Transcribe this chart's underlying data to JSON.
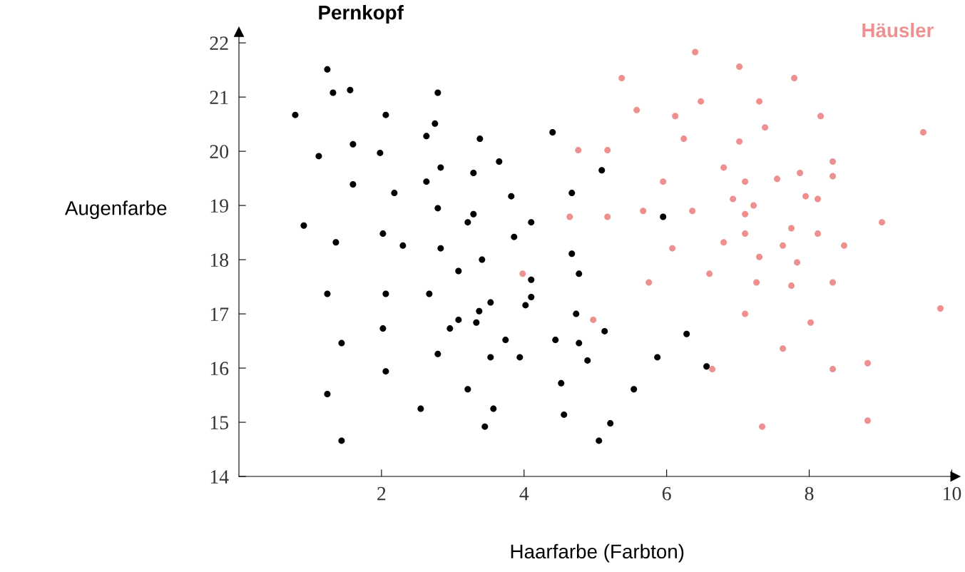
{
  "chart_data": {
    "type": "scatter",
    "xlabel": "Haarfarbe (Farbton)",
    "ylabel": "Augenfarbe",
    "xlim": [
      0,
      10.05
    ],
    "ylim": [
      14,
      22.2
    ],
    "xticks": [
      2,
      4,
      6,
      8,
      10
    ],
    "yticks": [
      14,
      15,
      16,
      17,
      18,
      19,
      20,
      21,
      22
    ],
    "grid": false,
    "legend": false,
    "marker": "circle",
    "series": [
      {
        "name": "Pernkopf",
        "color": "#000000",
        "x": [
          0.79,
          1.24,
          1.32,
          1.56,
          1.12,
          0.91,
          1.6,
          1.6,
          1.36,
          1.24,
          1.44,
          1.24,
          1.44,
          2.06,
          1.98,
          2.18,
          2.02,
          2.3,
          2.06,
          2.02,
          2.06,
          2.79,
          2.75,
          2.63,
          2.83,
          2.63,
          2.79,
          2.83,
          2.67,
          2.79,
          2.55,
          3.38,
          3.29,
          3.65,
          3.29,
          3.21,
          3.82,
          3.86,
          3.41,
          3.08,
          3.37,
          3.08,
          2.96,
          3.33,
          3.53,
          3.74,
          3.53,
          3.94,
          3.21,
          3.57,
          3.45,
          4.1,
          4.1,
          4.1,
          4.02,
          4.4,
          4.67,
          4.67,
          4.77,
          4.73,
          4.77,
          4.44,
          4.52,
          4.56,
          5.09,
          5.13,
          4.89,
          5.21,
          5.05,
          5.54,
          5.87,
          5.95,
          6.28,
          6.56
        ],
        "values": [
          20.67,
          21.51,
          21.08,
          21.13,
          19.91,
          18.63,
          20.13,
          19.39,
          18.32,
          17.37,
          16.46,
          15.52,
          14.66,
          20.67,
          19.97,
          19.23,
          18.48,
          18.26,
          17.37,
          16.73,
          15.94,
          21.08,
          20.51,
          20.28,
          19.7,
          19.44,
          18.95,
          18.21,
          17.37,
          16.26,
          15.25,
          20.23,
          19.6,
          19.81,
          18.84,
          18.69,
          19.17,
          18.42,
          18.0,
          17.79,
          17.05,
          16.89,
          16.73,
          16.84,
          17.21,
          16.52,
          16.2,
          16.2,
          15.61,
          15.25,
          14.92,
          18.69,
          17.63,
          17.31,
          17.16,
          20.35,
          18.11,
          19.23,
          17.74,
          17.0,
          16.46,
          16.52,
          15.72,
          15.14,
          19.65,
          16.68,
          16.14,
          14.98,
          14.66,
          15.61,
          16.2,
          18.79,
          16.63,
          16.03
        ]
      },
      {
        "name": "Häusler",
        "color": "#ee9090",
        "x": [
          5.37,
          6.4,
          7.02,
          7.79,
          5.58,
          6.48,
          6.12,
          7.3,
          7.38,
          8.16,
          9.6,
          6.24,
          7.02,
          4.76,
          5.17,
          6.8,
          8.33,
          7.87,
          8.33,
          5.95,
          7.1,
          7.55,
          6.93,
          7.95,
          8.12,
          7.22,
          5.67,
          6.36,
          7.1,
          4.64,
          5.17,
          9.02,
          7.75,
          7.1,
          8.12,
          6.8,
          6.08,
          7.63,
          8.49,
          7.3,
          7.83,
          3.98,
          6.6,
          5.75,
          7.26,
          7.75,
          8.33,
          7.1,
          9.84,
          4.97,
          8.02,
          7.63,
          6.64,
          8.33,
          8.82,
          7.34,
          8.82
        ],
        "values": [
          21.35,
          21.83,
          21.56,
          21.35,
          20.76,
          20.92,
          20.65,
          20.92,
          20.44,
          20.65,
          20.35,
          20.23,
          20.18,
          20.02,
          20.02,
          19.7,
          19.81,
          19.6,
          19.54,
          19.44,
          19.44,
          19.49,
          19.12,
          19.17,
          19.12,
          19.0,
          18.9,
          18.9,
          18.84,
          18.79,
          18.79,
          18.69,
          18.58,
          18.48,
          18.48,
          18.32,
          18.21,
          18.26,
          18.26,
          18.05,
          17.95,
          17.74,
          17.74,
          17.58,
          17.58,
          17.52,
          17.58,
          17.0,
          17.1,
          16.89,
          16.84,
          16.36,
          15.98,
          15.98,
          16.09,
          14.92,
          15.03
        ]
      }
    ]
  }
}
